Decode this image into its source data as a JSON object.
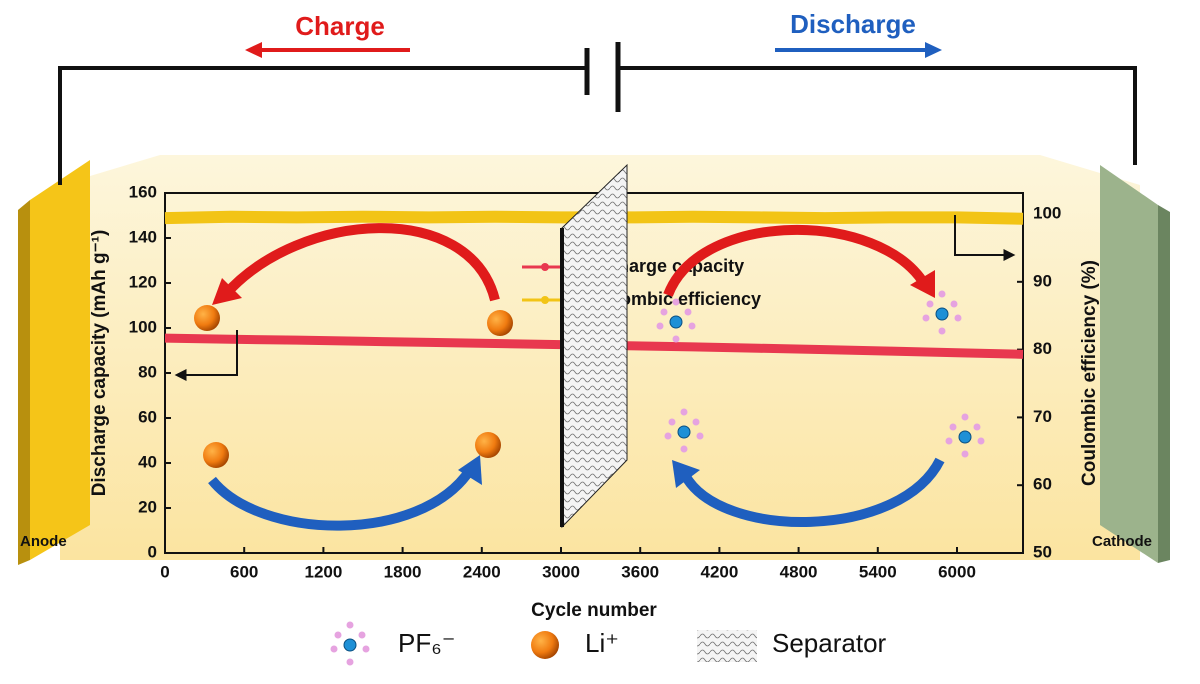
{
  "chart_data": {
    "type": "line",
    "x_label": "Cycle number",
    "y_label": "Discharge capacity (mAh g⁻¹)",
    "y2_label": "Coulombic efficiency (%)",
    "x": [
      0,
      500,
      1000,
      1500,
      2000,
      2500,
      3000,
      3500,
      4000,
      4500,
      5000,
      5500,
      6000,
      6500
    ],
    "series": [
      {
        "name": "Discharge capacity",
        "color": "#e8384f",
        "values": [
          95.5,
          95.0,
          94.6,
          94.1,
          93.6,
          93.1,
          92.6,
          92.1,
          91.6,
          91.0,
          90.4,
          89.7,
          89.0,
          88.3
        ]
      },
      {
        "name": "Coulombic efficiency",
        "color": "#f2c416",
        "axis": "y2",
        "values": [
          99.4,
          99.6,
          99.5,
          99.6,
          99.5,
          99.6,
          99.5,
          99.5,
          99.6,
          99.5,
          99.4,
          99.5,
          99.5,
          99.3
        ]
      }
    ],
    "xlim": [
      0,
      6500
    ],
    "xticks": [
      0,
      600,
      1200,
      1800,
      2400,
      3000,
      3600,
      4200,
      4800,
      5400,
      6000
    ],
    "ylim": [
      0,
      160
    ],
    "yticks": [
      0,
      20,
      40,
      60,
      80,
      100,
      120,
      140,
      160
    ],
    "y2lim": [
      50,
      103.1
    ],
    "y2ticks": [
      50,
      60,
      70,
      80,
      90,
      100
    ],
    "legend": "upper-center",
    "annotations": [
      "Charge",
      "Discharge",
      "Anode",
      "Cathode"
    ],
    "legend_items": [
      "PF₆⁻",
      "Li⁺",
      "Separator"
    ]
  }
}
